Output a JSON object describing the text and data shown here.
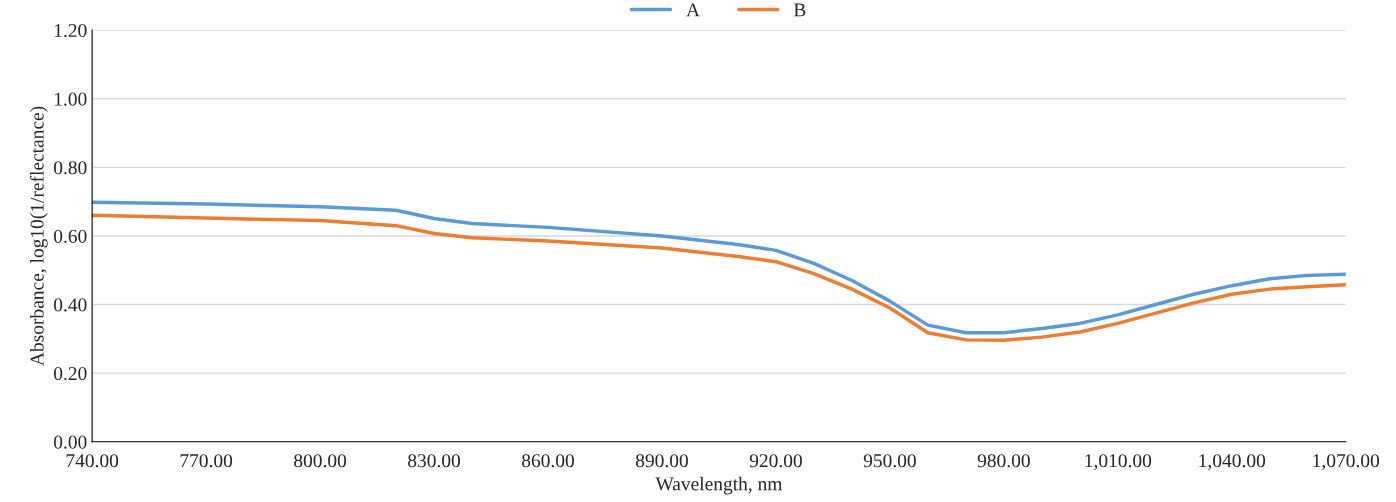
{
  "chart_data": {
    "type": "line",
    "xlabel": "Wavelength, nm",
    "ylabel": "Absorbance, log10(1/reflectance)",
    "x": [
      740,
      770,
      800,
      820,
      830,
      840,
      860,
      890,
      910,
      920,
      930,
      940,
      950,
      960,
      970,
      980,
      990,
      1000,
      1010,
      1020,
      1030,
      1040,
      1050,
      1060,
      1070
    ],
    "series": [
      {
        "name": "A",
        "color": "#5b9bd5",
        "values": [
          0.698,
          0.693,
          0.685,
          0.675,
          0.651,
          0.636,
          0.625,
          0.6,
          0.575,
          0.558,
          0.52,
          0.47,
          0.41,
          0.34,
          0.318,
          0.318,
          0.33,
          0.345,
          0.37,
          0.4,
          0.43,
          0.455,
          0.475,
          0.485,
          0.488
        ]
      },
      {
        "name": "B",
        "color": "#ed7d31",
        "values": [
          0.66,
          0.652,
          0.645,
          0.63,
          0.607,
          0.595,
          0.585,
          0.565,
          0.54,
          0.525,
          0.49,
          0.445,
          0.39,
          0.318,
          0.297,
          0.296,
          0.305,
          0.32,
          0.345,
          0.375,
          0.405,
          0.43,
          0.445,
          0.452,
          0.458
        ]
      }
    ],
    "xlim": [
      740,
      1070
    ],
    "xticks": [
      {
        "value": 740,
        "label": "740.00"
      },
      {
        "value": 770,
        "label": "770.00"
      },
      {
        "value": 800,
        "label": "800.00"
      },
      {
        "value": 830,
        "label": "830.00"
      },
      {
        "value": 860,
        "label": "860.00"
      },
      {
        "value": 890,
        "label": "890.00"
      },
      {
        "value": 920,
        "label": "920.00"
      },
      {
        "value": 950,
        "label": "950.00"
      },
      {
        "value": 980,
        "label": "980.00"
      },
      {
        "value": 1010,
        "label": "1,010.00"
      },
      {
        "value": 1040,
        "label": "1,040.00"
      },
      {
        "value": 1070,
        "label": "1,070.00"
      }
    ],
    "ylim": [
      0,
      1.2
    ],
    "yticks": [
      {
        "value": 0,
        "label": "0.00"
      },
      {
        "value": 0.2,
        "label": "0.20"
      },
      {
        "value": 0.4,
        "label": "0.40"
      },
      {
        "value": 0.6,
        "label": "0.60"
      },
      {
        "value": 0.8,
        "label": "0.80"
      },
      {
        "value": 1.0,
        "label": "1.00"
      },
      {
        "value": 1.2,
        "label": "1.20"
      }
    ],
    "grid": "y",
    "legend": "top",
    "marker": "none",
    "line_style": "solid"
  }
}
